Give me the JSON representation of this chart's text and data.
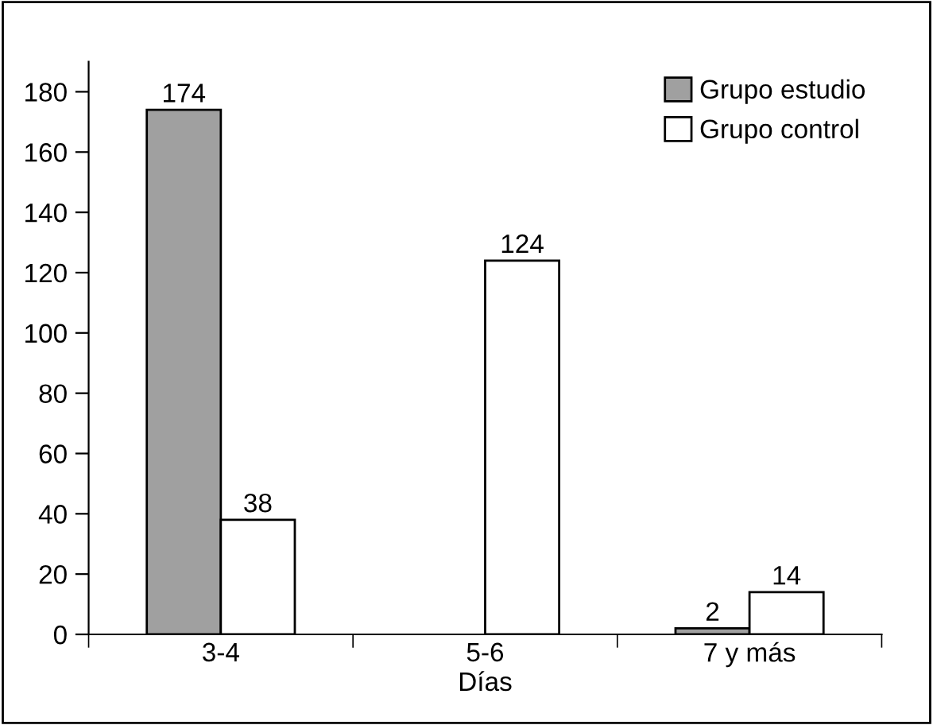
{
  "chart_data": {
    "type": "bar",
    "xlabel": "Días",
    "categories": [
      "3-4",
      "5-6",
      "7 y más"
    ],
    "series": [
      {
        "name": "Grupo estudio",
        "color": "#a0a0a0",
        "values": [
          174,
          null,
          2
        ]
      },
      {
        "name": "Grupo control",
        "color": "#ffffff",
        "values": [
          38,
          124,
          14
        ]
      }
    ],
    "ylim": [
      0,
      190
    ],
    "yticks": [
      0,
      20,
      40,
      60,
      80,
      100,
      120,
      140,
      160,
      180
    ],
    "data_labels": true,
    "legend": "top right",
    "grid": false
  }
}
